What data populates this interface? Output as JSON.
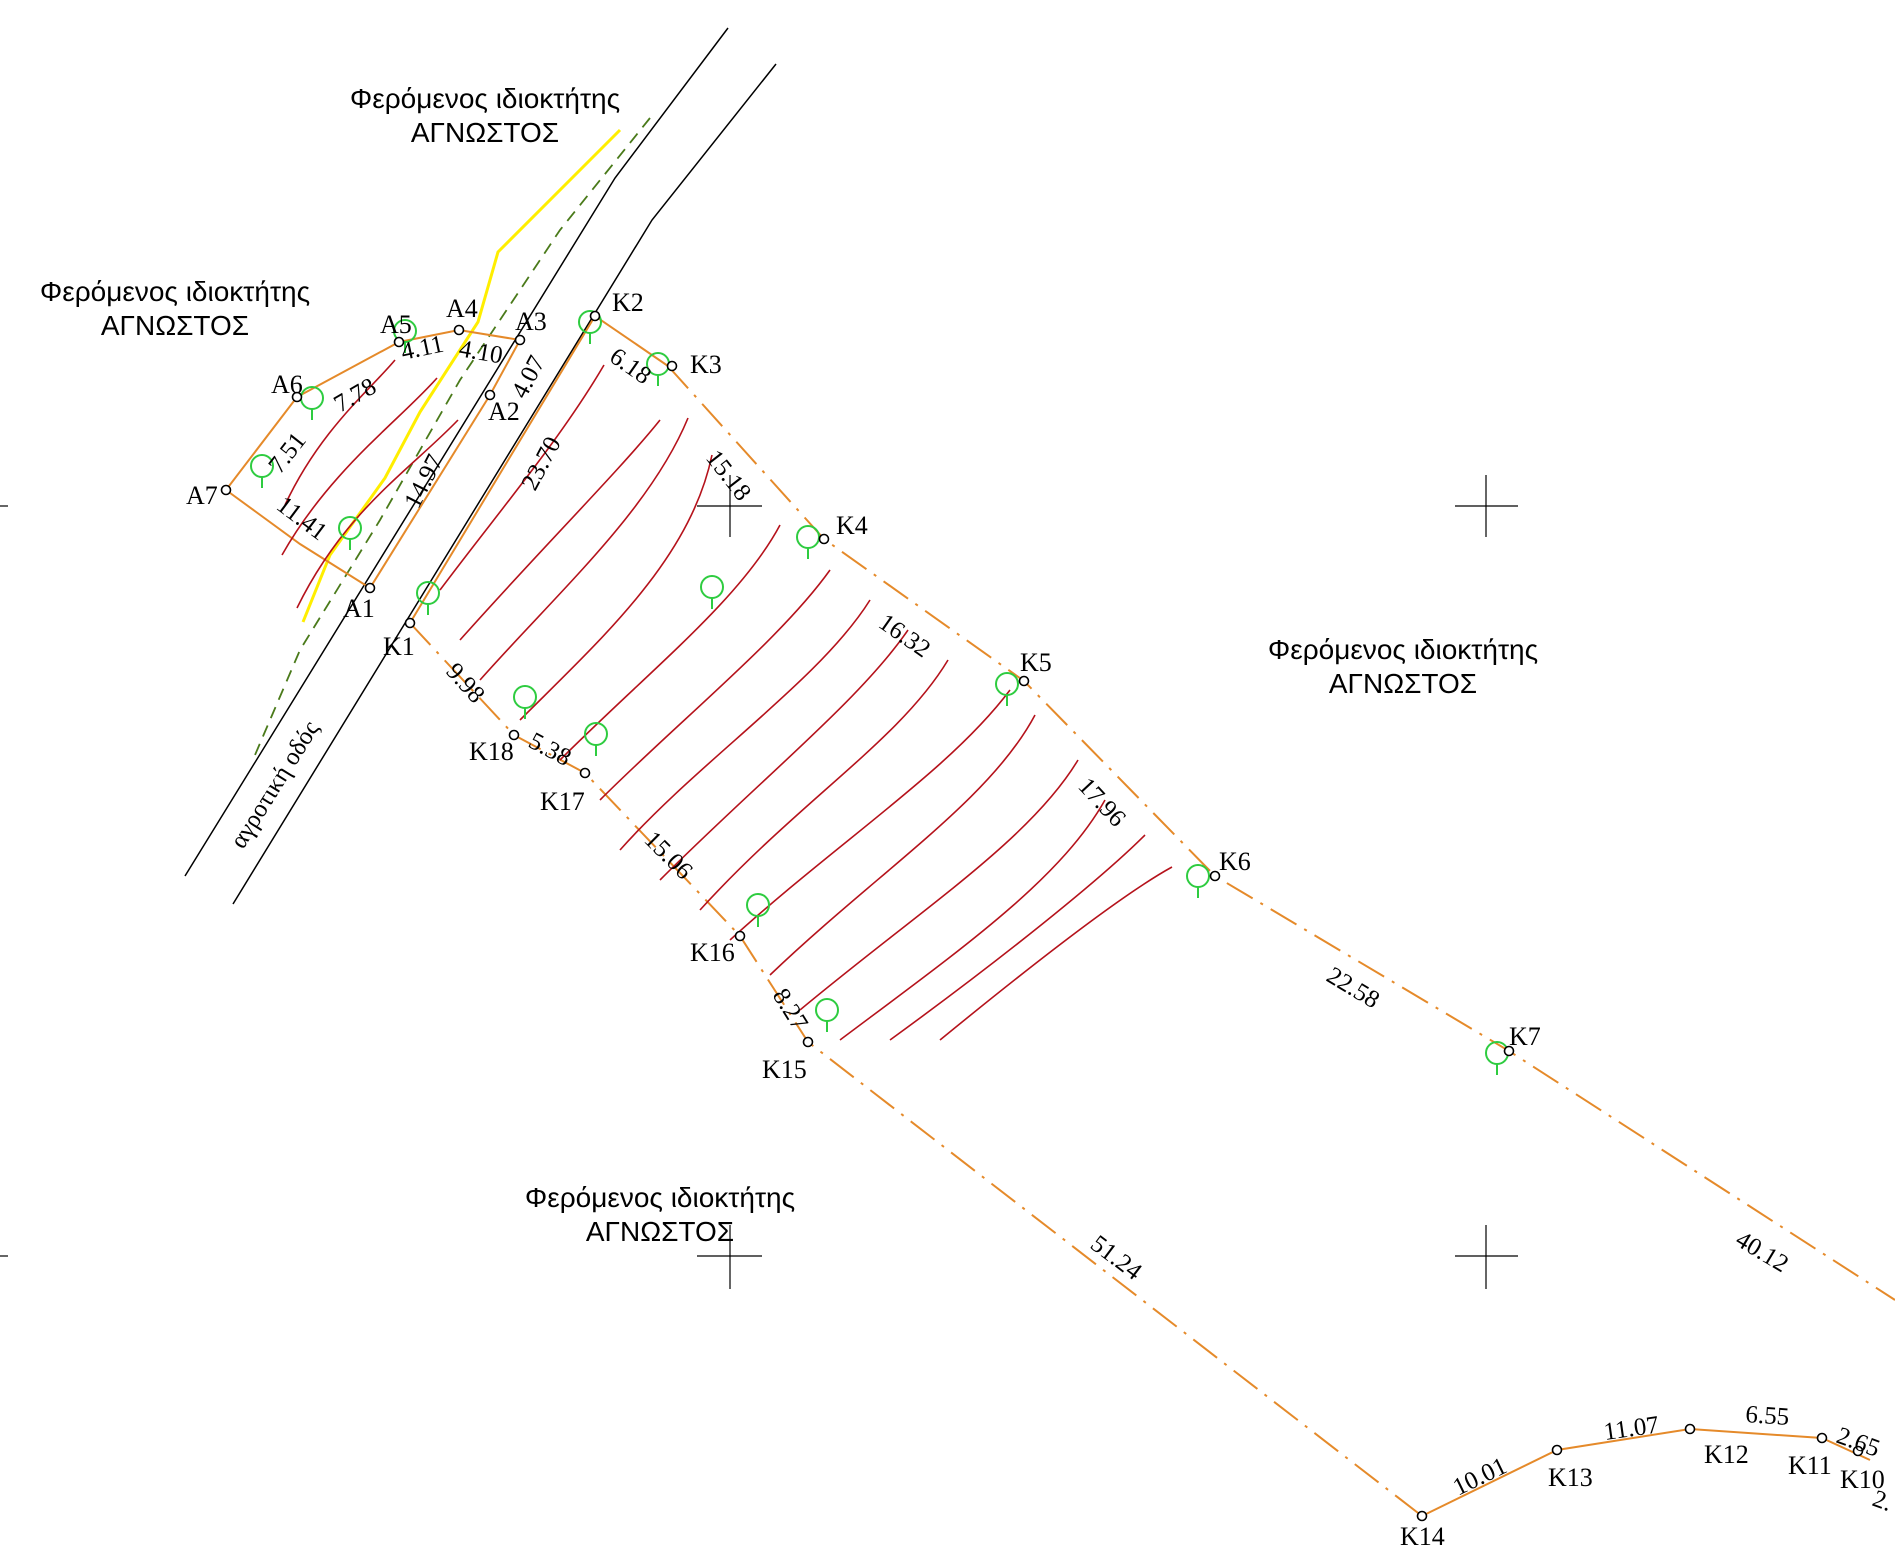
{
  "owner_labels": [
    {
      "line1": "Φερόμενος ιδιοκτήτης",
      "line2": "ΑΓΝΩΣΤΟΣ"
    },
    {
      "line1": "Φερόμενος ιδιοκτήτης",
      "line2": "ΑΓΝΩΣΤΟΣ"
    },
    {
      "line1": "Φερόμενος ιδιοκτήτης",
      "line2": "ΑΓΝΩΣΤΟΣ"
    },
    {
      "line1": "Φερόμενος ιδιοκτήτης",
      "line2": "ΑΓΝΩΣΤΟΣ"
    }
  ],
  "road_label": "αγροτική οδός",
  "point_labels": [
    "A1",
    "A2",
    "A3",
    "A4",
    "A5",
    "A6",
    "A7",
    "K1",
    "K2",
    "K3",
    "K4",
    "K5",
    "K6",
    "K7",
    "K10",
    "K11",
    "K12",
    "K13",
    "K14",
    "K15",
    "K16",
    "K17",
    "K18"
  ],
  "dimensions": [
    "7.51",
    "7.78",
    "4.11",
    "4.10",
    "4.07",
    "11.41",
    "14.97",
    "23.70",
    "6.18",
    "15.18",
    "16.32",
    "17.96",
    "22.58",
    "40.12",
    "51.24",
    "9.98",
    "5.38",
    "15.06",
    "8.27",
    "10.01",
    "11.07",
    "6.55",
    "2.65",
    "2."
  ]
}
